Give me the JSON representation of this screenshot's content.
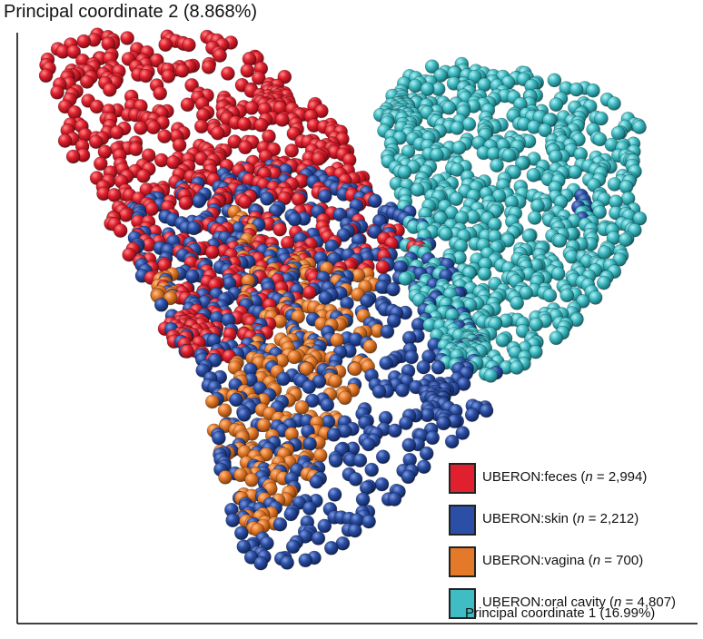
{
  "chart_data": {
    "type": "scatter",
    "title": "",
    "xlabel": "Principal coordinate 1 (16.99%)",
    "ylabel": "Principal coordinate 2 (8.868%)",
    "grid": false,
    "legend_position": "bottom-right",
    "series": [
      {
        "name": "UBERON:feces",
        "n_text": "2,994",
        "color": "#e0202e"
      },
      {
        "name": "UBERON:skin",
        "n_text": "2,212",
        "color": "#2b4fa6"
      },
      {
        "name": "UBERON:vagina",
        "n_text": "700",
        "color": "#e5792a"
      },
      {
        "name": "UBERON:oral cavity",
        "n_text": "4,807",
        "color": "#3fbcc4"
      }
    ]
  },
  "legend_n_prefix": "n",
  "legend_n_eq": " = "
}
